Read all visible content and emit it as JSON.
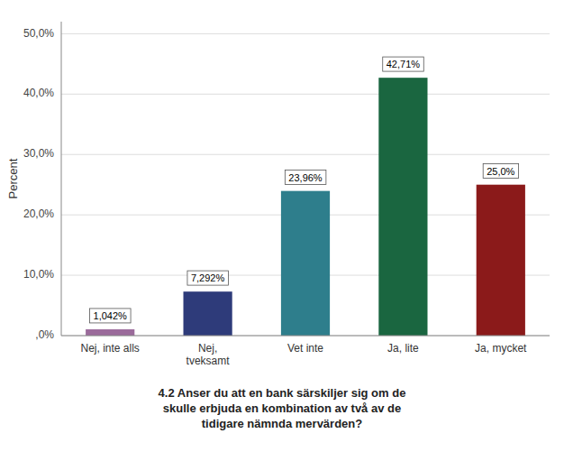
{
  "chart_data": {
    "type": "bar",
    "title": "4.2 Anser du att en bank särskiljer sig om de\nskulle erbjuda en kombination av två av de\ntidigare nämnda mervärden?",
    "y_label": "Percent",
    "categories": [
      "Nej, inte alls",
      "Nej,\ntveksamt",
      "Vet inte",
      "Ja, lite",
      "Ja, mycket"
    ],
    "values": [
      1.042,
      7.292,
      23.96,
      42.71,
      25.0
    ],
    "value_labels": [
      "1,042%",
      "7,292%",
      "23,96%",
      "42,71%",
      "25,0%"
    ],
    "colors": [
      "#9B6B9B",
      "#2E3B7A",
      "#2E7E8C",
      "#1A6640",
      "#8B1A1A"
    ],
    "ylim": [
      0,
      52
    ],
    "yticks": [
      {
        "value": 0,
        "label": ",0%"
      },
      {
        "value": 10,
        "label": "10,0%"
      },
      {
        "value": 20,
        "label": "20,0%"
      },
      {
        "value": 30,
        "label": "30,0%"
      },
      {
        "value": 40,
        "label": "40,0%"
      },
      {
        "value": 50,
        "label": "50,0%"
      }
    ],
    "grid": true,
    "data_labels": true
  }
}
